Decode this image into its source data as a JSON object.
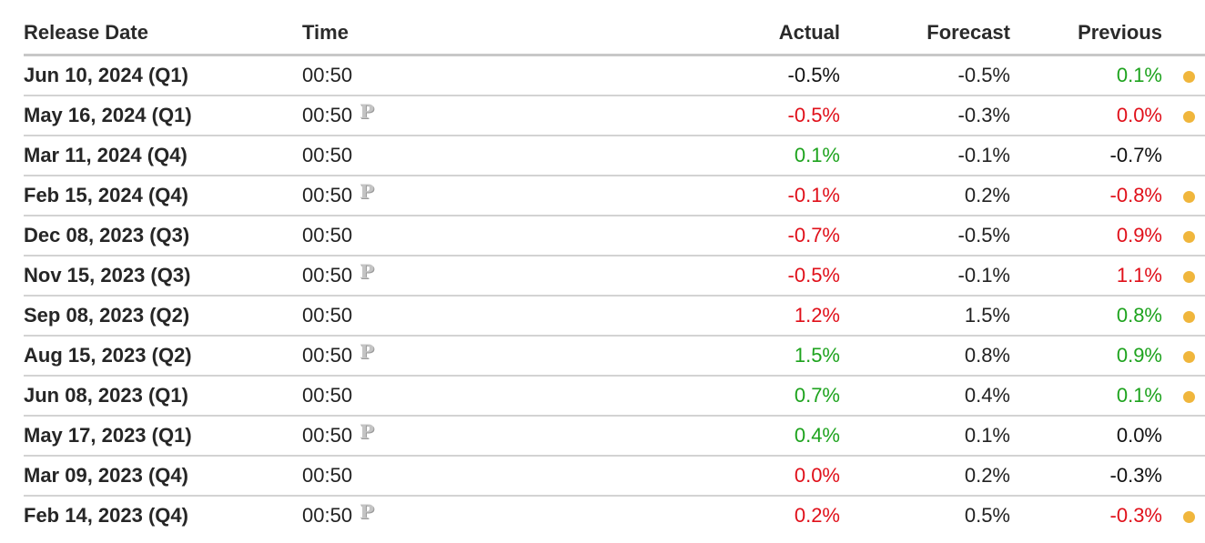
{
  "table": {
    "headers": {
      "release_date": "Release Date",
      "time": "Time",
      "actual": "Actual",
      "forecast": "Forecast",
      "previous": "Previous"
    },
    "colors": {
      "positive": "#1ea31e",
      "negative": "#e0101a",
      "neutral": "#111111",
      "dot": "#f0b63c",
      "preliminary_icon": "#c4c4c4"
    },
    "rows": [
      {
        "date": "Jun 10, 2024 (Q1)",
        "time": "00:50",
        "preliminary": false,
        "preliminary_label": "",
        "actual": "-0.5%",
        "actual_tone": "neutral",
        "forecast": "-0.5%",
        "previous": "0.1%",
        "previous_tone": "up",
        "revised": true
      },
      {
        "date": "May 16, 2024 (Q1)",
        "time": "00:50",
        "preliminary": true,
        "preliminary_label": "P",
        "actual": "-0.5%",
        "actual_tone": "down",
        "forecast": "-0.3%",
        "previous": "0.0%",
        "previous_tone": "down",
        "revised": true
      },
      {
        "date": "Mar 11, 2024 (Q4)",
        "time": "00:50",
        "preliminary": false,
        "preliminary_label": "",
        "actual": "0.1%",
        "actual_tone": "up",
        "forecast": "-0.1%",
        "previous": "-0.7%",
        "previous_tone": "neutral",
        "revised": false
      },
      {
        "date": "Feb 15, 2024 (Q4)",
        "time": "00:50",
        "preliminary": true,
        "preliminary_label": "P",
        "actual": "-0.1%",
        "actual_tone": "down",
        "forecast": "0.2%",
        "previous": "-0.8%",
        "previous_tone": "down",
        "revised": true
      },
      {
        "date": "Dec 08, 2023 (Q3)",
        "time": "00:50",
        "preliminary": false,
        "preliminary_label": "",
        "actual": "-0.7%",
        "actual_tone": "down",
        "forecast": "-0.5%",
        "previous": "0.9%",
        "previous_tone": "down",
        "revised": true
      },
      {
        "date": "Nov 15, 2023 (Q3)",
        "time": "00:50",
        "preliminary": true,
        "preliminary_label": "P",
        "actual": "-0.5%",
        "actual_tone": "down",
        "forecast": "-0.1%",
        "previous": "1.1%",
        "previous_tone": "down",
        "revised": true
      },
      {
        "date": "Sep 08, 2023 (Q2)",
        "time": "00:50",
        "preliminary": false,
        "preliminary_label": "",
        "actual": "1.2%",
        "actual_tone": "down",
        "forecast": "1.5%",
        "previous": "0.8%",
        "previous_tone": "up",
        "revised": true
      },
      {
        "date": "Aug 15, 2023 (Q2)",
        "time": "00:50",
        "preliminary": true,
        "preliminary_label": "P",
        "actual": "1.5%",
        "actual_tone": "up",
        "forecast": "0.8%",
        "previous": "0.9%",
        "previous_tone": "up",
        "revised": true
      },
      {
        "date": "Jun 08, 2023 (Q1)",
        "time": "00:50",
        "preliminary": false,
        "preliminary_label": "",
        "actual": "0.7%",
        "actual_tone": "up",
        "forecast": "0.4%",
        "previous": "0.1%",
        "previous_tone": "up",
        "revised": true
      },
      {
        "date": "May 17, 2023 (Q1)",
        "time": "00:50",
        "preliminary": true,
        "preliminary_label": "P",
        "actual": "0.4%",
        "actual_tone": "up",
        "forecast": "0.1%",
        "previous": "0.0%",
        "previous_tone": "neutral",
        "revised": false
      },
      {
        "date": "Mar 09, 2023 (Q4)",
        "time": "00:50",
        "preliminary": false,
        "preliminary_label": "",
        "actual": "0.0%",
        "actual_tone": "down",
        "forecast": "0.2%",
        "previous": "-0.3%",
        "previous_tone": "neutral",
        "revised": false
      },
      {
        "date": "Feb 14, 2023 (Q4)",
        "time": "00:50",
        "preliminary": true,
        "preliminary_label": "P",
        "actual": "0.2%",
        "actual_tone": "down",
        "forecast": "0.5%",
        "previous": "-0.3%",
        "previous_tone": "down",
        "revised": true
      }
    ]
  }
}
